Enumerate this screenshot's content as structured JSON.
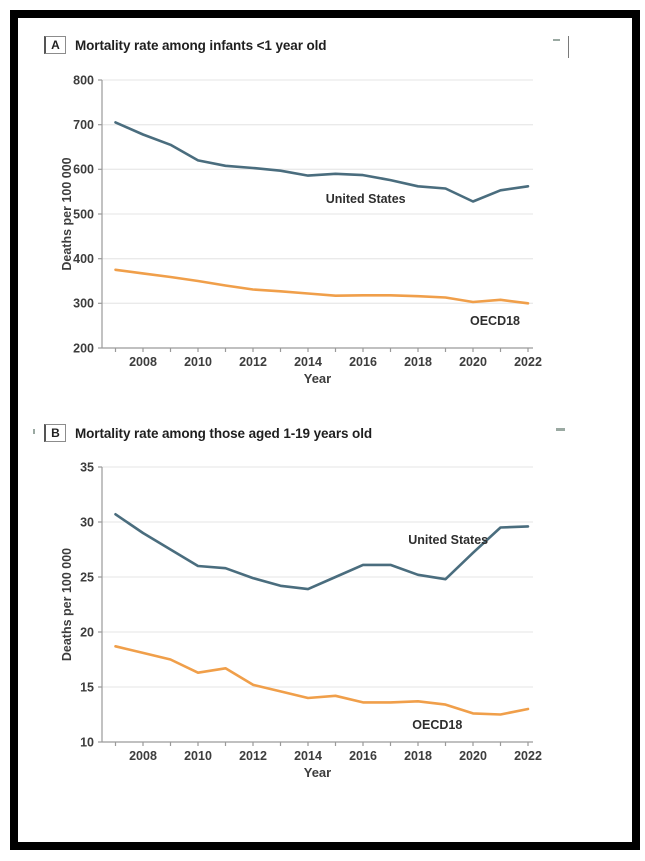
{
  "page": {
    "background": "#ffffff",
    "frame_color": "#000000"
  },
  "panels": [
    {
      "letter": "A",
      "title": "Mortality rate among infants <1 year old"
    },
    {
      "letter": "B",
      "title": "Mortality rate among those aged 1-19 years old"
    }
  ],
  "chart_data": [
    {
      "panel": "A",
      "type": "line",
      "title": "Mortality rate among infants <1 year old",
      "xlabel": "Year",
      "ylabel": "Deaths per 100 000",
      "x": [
        2007,
        2008,
        2009,
        2010,
        2011,
        2012,
        2013,
        2014,
        2015,
        2016,
        2017,
        2018,
        2019,
        2020,
        2021,
        2022
      ],
      "xticks": [
        2008,
        2010,
        2012,
        2014,
        2016,
        2018,
        2020,
        2022
      ],
      "yticks": [
        200,
        300,
        400,
        500,
        600,
        700,
        800
      ],
      "ylim": [
        200,
        800
      ],
      "grid": true,
      "legend_position": "inline-labels",
      "colors": {
        "grid": "#eaeaea",
        "axis": "#9a9a9a",
        "tick_text": "#3d3d3d",
        "label_text": "#2e2e2e"
      },
      "series": [
        {
          "name": "United States",
          "color": "#4a6d7e",
          "values": [
            705,
            678,
            655,
            620,
            608,
            603,
            597,
            586,
            590,
            587,
            576,
            562,
            557,
            528,
            553,
            562
          ],
          "label": {
            "x": 2016.1,
            "y": 534
          }
        },
        {
          "name": "OECD18",
          "color": "#f09f4a",
          "values": [
            375,
            367,
            359,
            350,
            340,
            331,
            327,
            322,
            317,
            318,
            318,
            316,
            313,
            303,
            308,
            300
          ],
          "label": {
            "x": 2020.8,
            "y": 261
          }
        }
      ]
    },
    {
      "panel": "B",
      "type": "line",
      "title": "Mortality rate among those aged 1-19 years old",
      "xlabel": "Year",
      "ylabel": "Deaths per 100 000",
      "x": [
        2007,
        2008,
        2009,
        2010,
        2011,
        2012,
        2013,
        2014,
        2015,
        2016,
        2017,
        2018,
        2019,
        2020,
        2021,
        2022
      ],
      "xticks": [
        2008,
        2010,
        2012,
        2014,
        2016,
        2018,
        2020,
        2022
      ],
      "yticks": [
        10,
        15,
        20,
        25,
        30,
        35
      ],
      "ylim": [
        10,
        35
      ],
      "grid": true,
      "legend_position": "inline-labels",
      "colors": {
        "grid": "#eaeaea",
        "axis": "#9a9a9a",
        "tick_text": "#3d3d3d",
        "label_text": "#2e2e2e"
      },
      "series": [
        {
          "name": "United States",
          "color": "#4a6d7e",
          "values": [
            30.7,
            29.0,
            27.5,
            26.0,
            25.8,
            24.9,
            24.2,
            23.9,
            25.0,
            26.1,
            26.1,
            25.2,
            24.8,
            27.2,
            29.5,
            29.6
          ],
          "label": {
            "x": 2019.1,
            "y": 28.4
          }
        },
        {
          "name": "OECD18",
          "color": "#f09f4a",
          "values": [
            18.7,
            18.1,
            17.5,
            16.3,
            16.7,
            15.2,
            14.6,
            14.0,
            14.2,
            13.6,
            13.6,
            13.7,
            13.4,
            12.6,
            12.5,
            13.0
          ],
          "label": {
            "x": 2018.7,
            "y": 11.6
          }
        }
      ]
    }
  ]
}
